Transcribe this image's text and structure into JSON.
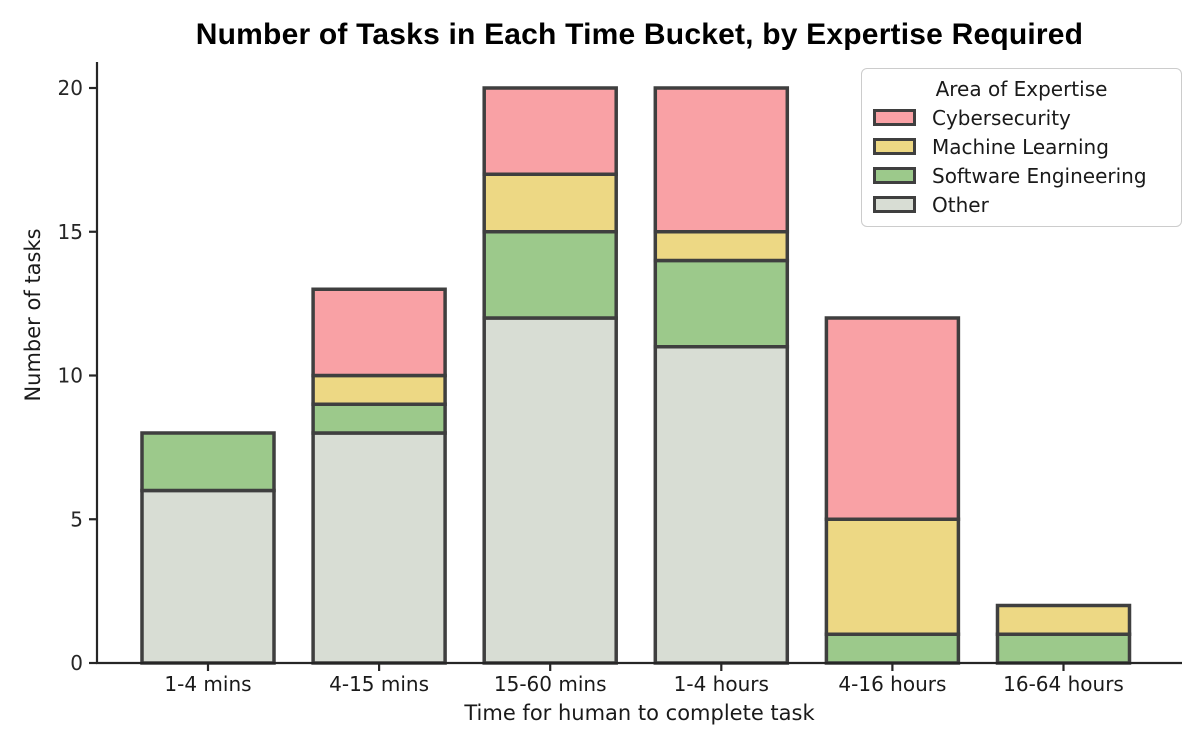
{
  "chart_data": {
    "type": "bar",
    "stacked": true,
    "title": "Number of Tasks in Each Time Bucket, by Expertise Required",
    "xlabel": "Time for human to complete task",
    "ylabel": "Number of tasks",
    "categories": [
      "1-4 mins",
      "4-15 mins",
      "15-60 mins",
      "1-4 hours",
      "4-16 hours",
      "16-64 hours"
    ],
    "series": [
      {
        "name": "Other",
        "color": "#d8ddd4",
        "values": [
          6,
          8,
          12,
          11,
          0,
          0
        ]
      },
      {
        "name": "Software Engineering",
        "color": "#9cc98b",
        "values": [
          2,
          1,
          3,
          3,
          1,
          1
        ]
      },
      {
        "name": "Machine Learning",
        "color": "#edd884",
        "values": [
          0,
          1,
          2,
          1,
          4,
          1
        ]
      },
      {
        "name": "Cybersecurity",
        "color": "#f9a1a5",
        "values": [
          0,
          3,
          3,
          5,
          7,
          0
        ]
      }
    ],
    "stack_totals": [
      8,
      13,
      20,
      20,
      12,
      2
    ],
    "y_ticks": [
      0,
      5,
      10,
      15,
      20
    ],
    "ylim": [
      0,
      20.9
    ],
    "grid": false,
    "bar_edge_color": "#3f3f3f",
    "axis_color": "#262626",
    "legend": {
      "title": "Area of Expertise",
      "position": "upper right",
      "order_top_to_bottom": [
        "Cybersecurity",
        "Machine Learning",
        "Software Engineering",
        "Other"
      ]
    }
  }
}
